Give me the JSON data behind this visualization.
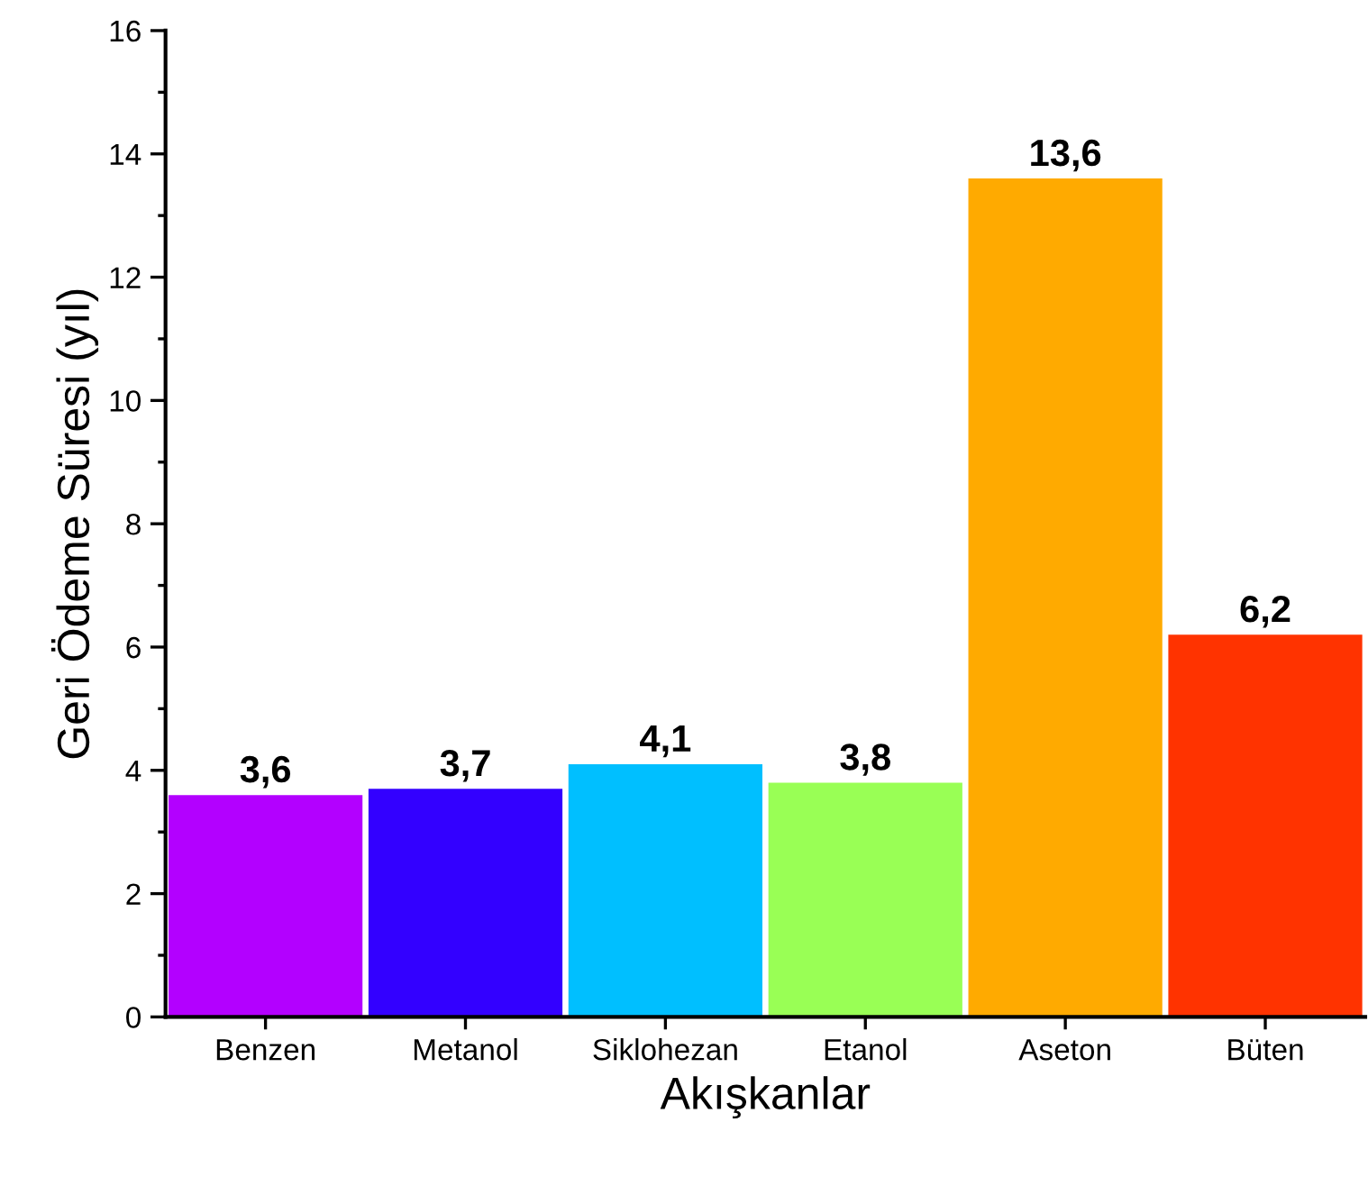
{
  "chart_data": {
    "type": "bar",
    "xlabel": "Akışkanlar",
    "ylabel": "Geri Ödeme Süresi (yıl)",
    "categories": [
      "Benzen",
      "Metanol",
      "Siklohezan",
      "Etanol",
      "Aseton",
      "Büten"
    ],
    "values": [
      3.6,
      3.7,
      4.1,
      3.8,
      13.6,
      6.2
    ],
    "colors": [
      "#b300ff",
      "#3300ff",
      "#00bfff",
      "#99ff55",
      "#ffaa00",
      "#ff3300"
    ],
    "value_labels": [
      "3,6",
      "3,7",
      "4,1",
      "3,8",
      "13,6",
      "6,2"
    ],
    "ylim": [
      0,
      16
    ],
    "yticks": [
      0,
      2,
      4,
      6,
      8,
      10,
      12,
      14,
      16
    ],
    "grid": false
  }
}
